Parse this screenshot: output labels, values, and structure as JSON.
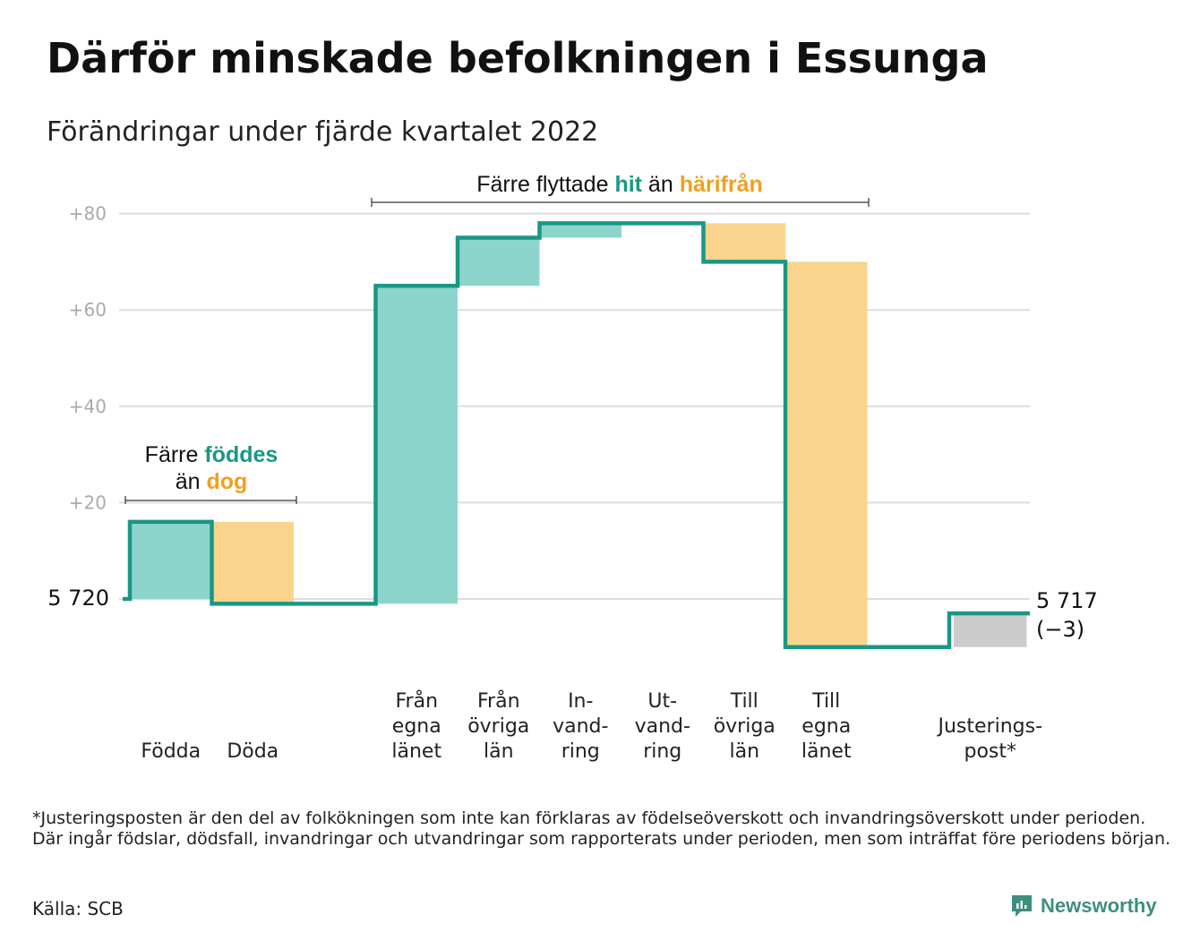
{
  "title": "Därför minskade befolkningen i Essunga",
  "subtitle": "Förändringar under fjärde kvartalet 2022",
  "colors": {
    "teal_line": "#1a9784",
    "teal_fill": "#8dd5cc",
    "orange_fill": "#fad48c",
    "orange_text": "#f0a020",
    "teal_text": "#1a9784",
    "gray_fill": "#cccccc",
    "grid": "#dddddd"
  },
  "chart_data": {
    "type": "waterfall",
    "start_value": 0,
    "start_label": "5 720",
    "end_label": "5 717",
    "end_change_label": "(−3)",
    "ylim": [
      -10,
      82
    ],
    "yticks": [
      {
        "value": 80,
        "label": "+80"
      },
      {
        "value": 60,
        "label": "+60"
      },
      {
        "value": 40,
        "label": "+40"
      },
      {
        "value": 20,
        "label": "+20"
      }
    ],
    "steps": [
      {
        "label": [
          "Födda"
        ],
        "change": 16,
        "kind": "in"
      },
      {
        "label": [
          "Döda"
        ],
        "change": -17,
        "kind": "out"
      },
      {
        "label": [],
        "change": 0,
        "kind": "gap"
      },
      {
        "label": [
          "Från",
          "egna",
          "länet"
        ],
        "change": 66,
        "kind": "in"
      },
      {
        "label": [
          "Från",
          "övriga",
          "län"
        ],
        "change": 10,
        "kind": "in"
      },
      {
        "label": [
          "In-",
          "vand-",
          "ring"
        ],
        "change": 3,
        "kind": "in"
      },
      {
        "label": [
          "Ut-",
          "vand-",
          "ring"
        ],
        "change": 0,
        "kind": "out"
      },
      {
        "label": [
          "Till",
          "övriga",
          "län"
        ],
        "change": -8,
        "kind": "out"
      },
      {
        "label": [
          "Till",
          "egna",
          "länet"
        ],
        "change": -80,
        "kind": "out"
      },
      {
        "label": [],
        "change": 0,
        "kind": "gap"
      },
      {
        "label": [
          "Justerings-",
          "post*"
        ],
        "change": 7,
        "kind": "adjust"
      }
    ],
    "annotations": [
      {
        "parts": [
          [
            "Färre ",
            "plain"
          ],
          [
            "föddes",
            "teal"
          ]
        ],
        "parts2": [
          [
            "än ",
            "plain"
          ],
          [
            "dog",
            "orange"
          ]
        ]
      },
      {
        "parts": [
          [
            "Färre flyttade ",
            "plain"
          ],
          [
            "hit",
            "teal"
          ],
          [
            " än ",
            "plain"
          ],
          [
            "härifrån",
            "orange"
          ]
        ]
      }
    ]
  },
  "footnote": "*Justeringsposten är den del av folkökningen som inte kan förklaras av födelseöverskott och invandringsöverskott under perioden. Där ingår födslar, dödsfall, invandringar och utvandringar som rapporterats under perioden, men som inträffat före periodens början.",
  "source": "Källa: SCB",
  "brand": "Newsworthy"
}
